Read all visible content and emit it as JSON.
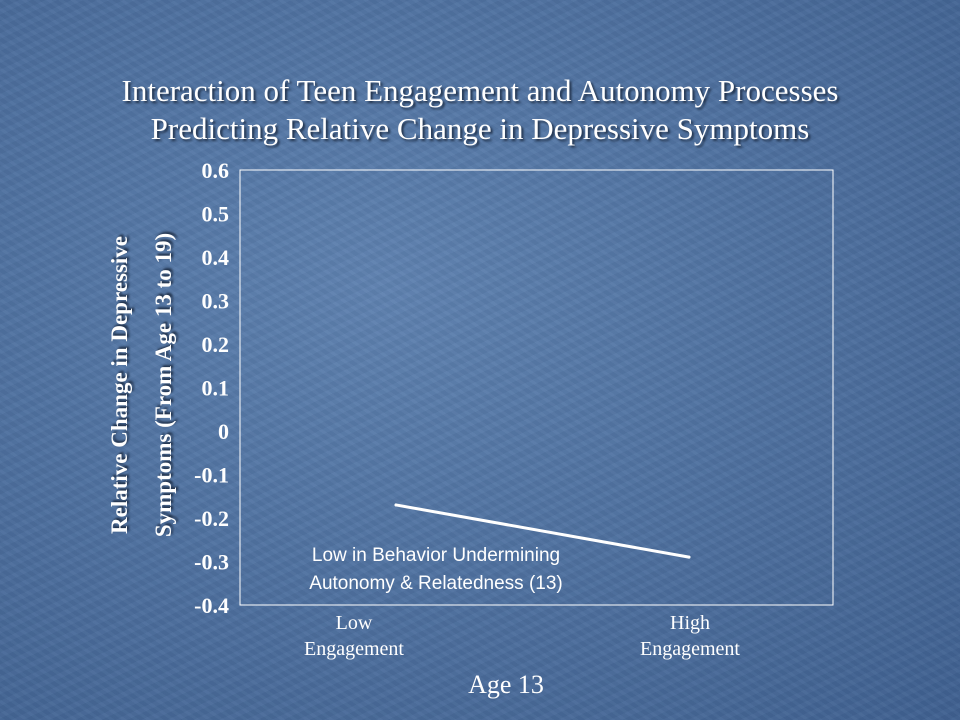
{
  "title": {
    "line1": "Interaction of Teen Engagement and Autonomy Processes",
    "line2": "Predicting Relative Change in Depressive Symptoms"
  },
  "y_axis_label": {
    "line1": "Relative Change in Depressive",
    "line2": "Symptoms (From Age 13 to 19)"
  },
  "x_categories": [
    {
      "line1": "Low",
      "line2": "Engagement"
    },
    {
      "line1": "High",
      "line2": "Engagement"
    }
  ],
  "x_axis_title": "Age 13",
  "annotation": {
    "line1": "Low in Behavior Undermining",
    "line2": "Autonomy & Relatedness (13)"
  },
  "chart_data": {
    "type": "line",
    "title": "Interaction of Teen Engagement and Autonomy Processes Predicting Relative Change in Depressive Symptoms",
    "xlabel": "Age 13",
    "ylabel": "Relative Change in Depressive Symptoms (From Age 13 to 19)",
    "categories": [
      "Low Engagement",
      "High Engagement"
    ],
    "ylim": [
      -0.4,
      0.6
    ],
    "yticks": [
      "0.6",
      "0.5",
      "0.4",
      "0.3",
      "0.2",
      "0.1",
      "0",
      "-0.1",
      "-0.2",
      "-0.3",
      "-0.4"
    ],
    "series": [
      {
        "name": "Low in Behavior Undermining Autonomy & Relatedness (13)",
        "values": [
          -0.17,
          -0.29
        ],
        "color": "#ffffff"
      }
    ],
    "grid": false,
    "legend": "inline"
  },
  "colors": {
    "background": "#5275a3",
    "text": "#ffffff",
    "line": "#ffffff"
  }
}
